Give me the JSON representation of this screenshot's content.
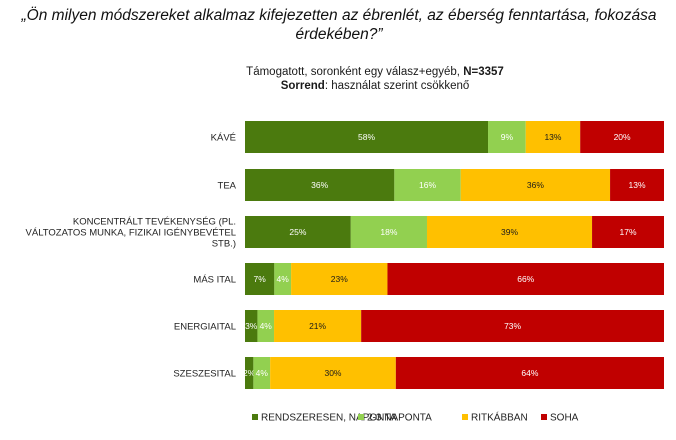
{
  "title": "„Ön milyen módszereket alkalmaz kifejezetten az ébrenlét, az éberség fenntartása, fokozása érdekében?”",
  "note": {
    "line1_text": "Támogatott, soronként egy válasz+egyéb,",
    "line1_bold": "N=3357",
    "line2_bold": "Sorrend",
    "line2_text": ": használat szerint csökkenő"
  },
  "colors": {
    "RENDSZERESEN, NAPONTA": "#4b7a0e",
    "2-3 NAPONTA": "#92d050",
    "RITKÁBBAN": "#ffc000",
    "SOHA": "#c00000"
  },
  "chart_data": {
    "type": "bar",
    "orientation": "horizontal",
    "stacked": true,
    "percent_stacked": true,
    "categories": [
      "KÁVÉ",
      "TEA",
      "KONCENTRÁLT TEVÉKENYSÉG (PL. VÁLTOZATOS MUNKA, FIZIKAI IGÉNYBEVÉTEL STB.)",
      "MÁS ITAL",
      "ENERGIAITAL",
      "SZESZESITAL"
    ],
    "category_lines": [
      [
        "KÁVÉ"
      ],
      [
        "TEA"
      ],
      [
        "KONCENTRÁLT TEVÉKENYSÉG (PL.",
        "VÁLTOZATOS MUNKA, FIZIKAI IGÉNYBEVÉTEL",
        "STB.)"
      ],
      [
        "MÁS ITAL"
      ],
      [
        "ENERGIAITAL"
      ],
      [
        "SZESZESITAL"
      ]
    ],
    "series": [
      {
        "name": "RENDSZERESEN, NAPONTA",
        "values": [
          58,
          36,
          25,
          7,
          3,
          2
        ]
      },
      {
        "name": "2-3 NAPONTA",
        "values": [
          9,
          16,
          18,
          4,
          4,
          4
        ]
      },
      {
        "name": "RITKÁBBAN",
        "values": [
          13,
          36,
          39,
          23,
          21,
          30
        ]
      },
      {
        "name": "SOHA",
        "values": [
          20,
          13,
          17,
          66,
          73,
          64
        ]
      }
    ],
    "data_labels": [
      [
        "58%",
        "36%",
        "25%",
        "7%",
        "3%",
        "2%"
      ],
      [
        "9%",
        "16%",
        "18%",
        "4%",
        "4%",
        "4%"
      ],
      [
        "13%",
        "36%",
        "39%",
        "23%",
        "21%",
        "30%"
      ],
      [
        "20%",
        "13%",
        "17%",
        "66%",
        "73%",
        "64%"
      ]
    ],
    "legend_position": "bottom",
    "gridlines": false
  }
}
